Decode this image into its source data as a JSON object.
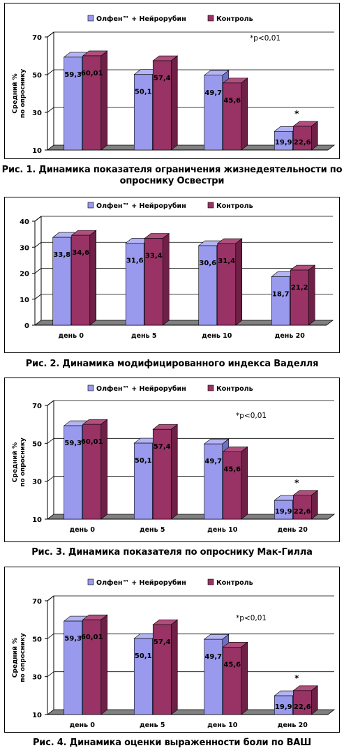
{
  "legend": {
    "series1": "Олфен™ + Нейрорубин",
    "series2": "Контроль"
  },
  "colors": {
    "series1": "#9999ee",
    "series1_top": "#b4b4f4",
    "series1_side": "#7070c0",
    "series2": "#993366",
    "series2_top": "#b04f7d",
    "series2_side": "#6e2046",
    "floor": "#808080"
  },
  "ylabel_line1": "Средний %",
  "ylabel_line2": "по опроснику",
  "chart_data": [
    {
      "type": "bar",
      "caption": "Рис. 1. Динамика показателя ограничения жизнедеятельности по опроснику Освестри",
      "categories": [
        "",
        "",
        "",
        ""
      ],
      "series": [
        {
          "name": "Олфен™ + Нейрорубин",
          "values": [
            59.3,
            50.1,
            49.7,
            19.9
          ],
          "labels": [
            "59,3",
            "50,1",
            "49,7",
            "19,9"
          ]
        },
        {
          "name": "Контроль",
          "values": [
            60.01,
            57.4,
            45.6,
            22.6
          ],
          "labels": [
            "60,01",
            "57,4",
            "45,6",
            "22,6"
          ]
        }
      ],
      "ylim": [
        10,
        70
      ],
      "yticks": [
        10,
        30,
        50,
        70
      ],
      "ytick_labels": [
        "10",
        "30",
        "50",
        "70"
      ],
      "ylabel": "Средний % по опроснику",
      "annotation": "*p<0,01",
      "star_label": "*",
      "star_index": 3,
      "grid": true,
      "legend_position": "top-center"
    },
    {
      "type": "bar",
      "caption": "Рис. 2. Динамика модифицированного индекса Ваделля",
      "categories": [
        "день 0",
        "день 5",
        "день 10",
        "день 20"
      ],
      "series": [
        {
          "name": "Олфен™ + Нейрорубин",
          "values": [
            33.8,
            31.6,
            30.6,
            18.7
          ],
          "labels": [
            "33,8",
            "31,6",
            "30,6",
            "18,7"
          ]
        },
        {
          "name": "Контроль",
          "values": [
            34.6,
            33.4,
            31.4,
            21.2
          ],
          "labels": [
            "34,6",
            "33,4",
            "31,4",
            "21,2"
          ]
        }
      ],
      "ylim": [
        0,
        40
      ],
      "yticks": [
        0,
        10,
        20,
        30,
        40
      ],
      "ytick_labels": [
        "0",
        "10",
        "20",
        "30",
        "40"
      ],
      "ylabel": "",
      "annotation": "",
      "star_label": "",
      "star_index": -1,
      "grid": true,
      "legend_position": "top-center"
    },
    {
      "type": "bar",
      "caption": "Рис. 3. Динамика показателя по опроснику Мак-Гилла",
      "categories": [
        "день 0",
        "день 5",
        "день 10",
        "день 20"
      ],
      "series": [
        {
          "name": "Олфен™ + Нейрорубин",
          "values": [
            59.3,
            50.1,
            49.7,
            19.9
          ],
          "labels": [
            "59,3",
            "50,1",
            "49,7",
            "19,9"
          ]
        },
        {
          "name": "Контроль",
          "values": [
            60.01,
            57.4,
            45.6,
            22.6
          ],
          "labels": [
            "60,01",
            "57,4",
            "45,6",
            "22,6"
          ]
        }
      ],
      "ylim": [
        10,
        70
      ],
      "yticks": [
        10,
        30,
        50,
        70
      ],
      "ytick_labels": [
        "10",
        "30",
        "50",
        "70"
      ],
      "ylabel": "Средний % по опроснику",
      "annotation": "*p<0,01",
      "star_label": "*",
      "star_index": 3,
      "grid": true,
      "legend_position": "top-center"
    },
    {
      "type": "bar",
      "caption": "Рис. 4. Динамика оценки выраженности боли по ВАШ",
      "categories": [
        "день 0",
        "день 5",
        "день 10",
        "день 20"
      ],
      "series": [
        {
          "name": "Олфен™ + Нейрорубин",
          "values": [
            59.3,
            50.1,
            49.7,
            19.9
          ],
          "labels": [
            "59,3",
            "50,1",
            "49,7",
            "19,9"
          ]
        },
        {
          "name": "Контроль",
          "values": [
            60.01,
            57.4,
            45.6,
            22.6
          ],
          "labels": [
            "60,01",
            "57,4",
            "45,6",
            "22,6"
          ]
        }
      ],
      "ylim": [
        10,
        70
      ],
      "yticks": [
        10,
        30,
        50,
        70
      ],
      "ytick_labels": [
        "10",
        "30",
        "50",
        "70"
      ],
      "ylabel": "Средний % по опроснику",
      "annotation": "*p<0,01",
      "star_label": "*",
      "star_index": 3,
      "grid": true,
      "legend_position": "top-center"
    }
  ]
}
